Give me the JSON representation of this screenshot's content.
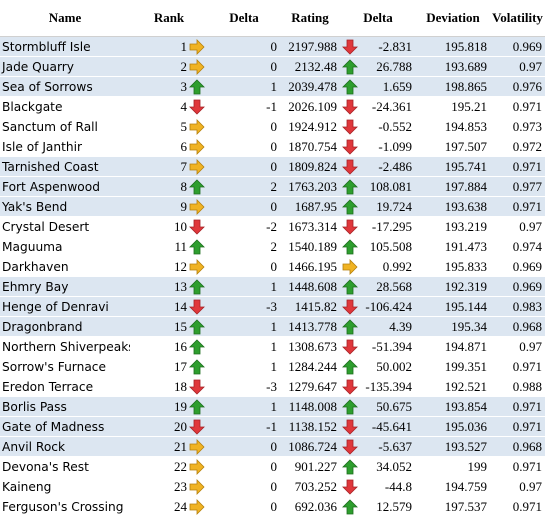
{
  "headers": {
    "name": "Name",
    "rank": "Rank",
    "delta": "Delta",
    "rating": "Rating",
    "rating_delta": "Delta",
    "deviation": "Deviation",
    "volatility": "Volatility"
  },
  "colors": {
    "tier_band": "#dce6f1",
    "up_arrow": "#2e9e2e",
    "down_arrow": "#e0373b",
    "flat_arrow": "#f0b323"
  },
  "rows": [
    {
      "name": "Stormbluff Isle",
      "rank": "1",
      "rank_trend": "flat",
      "delta": "0",
      "rating": "2197.988",
      "rating_trend": "down",
      "rating_delta": "-2.831",
      "deviation": "195.818",
      "volatility": "0.969",
      "band": "blue"
    },
    {
      "name": "Jade Quarry",
      "rank": "2",
      "rank_trend": "flat",
      "delta": "0",
      "rating": "2132.48",
      "rating_trend": "up",
      "rating_delta": "26.788",
      "deviation": "193.689",
      "volatility": "0.97",
      "band": "blue"
    },
    {
      "name": "Sea of Sorrows",
      "rank": "3",
      "rank_trend": "up",
      "delta": "1",
      "rating": "2039.478",
      "rating_trend": "up",
      "rating_delta": "1.659",
      "deviation": "198.865",
      "volatility": "0.976",
      "band": "blue"
    },
    {
      "name": "Blackgate",
      "rank": "4",
      "rank_trend": "down",
      "delta": "-1",
      "rating": "2026.109",
      "rating_trend": "down",
      "rating_delta": "-24.361",
      "deviation": "195.21",
      "volatility": "0.971",
      "band": "white"
    },
    {
      "name": "Sanctum of Rall",
      "rank": "5",
      "rank_trend": "flat",
      "delta": "0",
      "rating": "1924.912",
      "rating_trend": "down",
      "rating_delta": "-0.552",
      "deviation": "194.853",
      "volatility": "0.973",
      "band": "white"
    },
    {
      "name": "Isle of Janthir",
      "rank": "6",
      "rank_trend": "flat",
      "delta": "0",
      "rating": "1870.754",
      "rating_trend": "down",
      "rating_delta": "-1.099",
      "deviation": "197.507",
      "volatility": "0.972",
      "band": "white"
    },
    {
      "name": "Tarnished Coast",
      "rank": "7",
      "rank_trend": "flat",
      "delta": "0",
      "rating": "1809.824",
      "rating_trend": "down",
      "rating_delta": "-2.486",
      "deviation": "195.741",
      "volatility": "0.971",
      "band": "blue"
    },
    {
      "name": "Fort Aspenwood",
      "rank": "8",
      "rank_trend": "up",
      "delta": "2",
      "rating": "1763.203",
      "rating_trend": "up",
      "rating_delta": "108.081",
      "deviation": "197.884",
      "volatility": "0.977",
      "band": "blue"
    },
    {
      "name": "Yak's Bend",
      "rank": "9",
      "rank_trend": "flat",
      "delta": "0",
      "rating": "1687.95",
      "rating_trend": "up",
      "rating_delta": "19.724",
      "deviation": "193.638",
      "volatility": "0.971",
      "band": "blue"
    },
    {
      "name": "Crystal Desert",
      "rank": "10",
      "rank_trend": "down",
      "delta": "-2",
      "rating": "1673.314",
      "rating_trend": "down",
      "rating_delta": "-17.295",
      "deviation": "193.219",
      "volatility": "0.97",
      "band": "white"
    },
    {
      "name": "Maguuma",
      "rank": "11",
      "rank_trend": "up",
      "delta": "2",
      "rating": "1540.189",
      "rating_trend": "up",
      "rating_delta": "105.508",
      "deviation": "191.473",
      "volatility": "0.974",
      "band": "white"
    },
    {
      "name": "Darkhaven",
      "rank": "12",
      "rank_trend": "flat",
      "delta": "0",
      "rating": "1466.195",
      "rating_trend": "flat",
      "rating_delta": "0.992",
      "deviation": "195.833",
      "volatility": "0.969",
      "band": "white"
    },
    {
      "name": "Ehmry Bay",
      "rank": "13",
      "rank_trend": "up",
      "delta": "1",
      "rating": "1448.608",
      "rating_trend": "up",
      "rating_delta": "28.568",
      "deviation": "192.319",
      "volatility": "0.969",
      "band": "blue"
    },
    {
      "name": "Henge of Denravi",
      "rank": "14",
      "rank_trend": "down",
      "delta": "-3",
      "rating": "1415.82",
      "rating_trend": "down",
      "rating_delta": "-106.424",
      "deviation": "195.144",
      "volatility": "0.983",
      "band": "blue"
    },
    {
      "name": "Dragonbrand",
      "rank": "15",
      "rank_trend": "up",
      "delta": "1",
      "rating": "1413.778",
      "rating_trend": "up",
      "rating_delta": "4.39",
      "deviation": "195.34",
      "volatility": "0.968",
      "band": "blue"
    },
    {
      "name": "Northern Shiverpeaks",
      "rank": "16",
      "rank_trend": "up",
      "delta": "1",
      "rating": "1308.673",
      "rating_trend": "down",
      "rating_delta": "-51.394",
      "deviation": "194.871",
      "volatility": "0.97",
      "band": "white"
    },
    {
      "name": "Sorrow's Furnace",
      "rank": "17",
      "rank_trend": "up",
      "delta": "1",
      "rating": "1284.244",
      "rating_trend": "up",
      "rating_delta": "50.002",
      "deviation": "199.351",
      "volatility": "0.971",
      "band": "white"
    },
    {
      "name": "Eredon Terrace",
      "rank": "18",
      "rank_trend": "down",
      "delta": "-3",
      "rating": "1279.647",
      "rating_trend": "down",
      "rating_delta": "-135.394",
      "deviation": "192.521",
      "volatility": "0.988",
      "band": "white"
    },
    {
      "name": "Borlis Pass",
      "rank": "19",
      "rank_trend": "up",
      "delta": "1",
      "rating": "1148.008",
      "rating_trend": "up",
      "rating_delta": "50.675",
      "deviation": "193.854",
      "volatility": "0.971",
      "band": "blue"
    },
    {
      "name": "Gate of Madness",
      "rank": "20",
      "rank_trend": "down",
      "delta": "-1",
      "rating": "1138.152",
      "rating_trend": "down",
      "rating_delta": "-45.641",
      "deviation": "195.036",
      "volatility": "0.971",
      "band": "blue"
    },
    {
      "name": "Anvil Rock",
      "rank": "21",
      "rank_trend": "flat",
      "delta": "0",
      "rating": "1086.724",
      "rating_trend": "down",
      "rating_delta": "-5.637",
      "deviation": "193.527",
      "volatility": "0.968",
      "band": "blue"
    },
    {
      "name": "Devona's Rest",
      "rank": "22",
      "rank_trend": "flat",
      "delta": "0",
      "rating": "901.227",
      "rating_trend": "up",
      "rating_delta": "34.052",
      "deviation": "199",
      "volatility": "0.971",
      "band": "white"
    },
    {
      "name": "Kaineng",
      "rank": "23",
      "rank_trend": "flat",
      "delta": "0",
      "rating": "703.252",
      "rating_trend": "down",
      "rating_delta": "-44.8",
      "deviation": "194.759",
      "volatility": "0.97",
      "band": "white"
    },
    {
      "name": "Ferguson's Crossing",
      "rank": "24",
      "rank_trend": "flat",
      "delta": "0",
      "rating": "692.036",
      "rating_trend": "up",
      "rating_delta": "12.579",
      "deviation": "197.537",
      "volatility": "0.971",
      "band": "white"
    }
  ]
}
